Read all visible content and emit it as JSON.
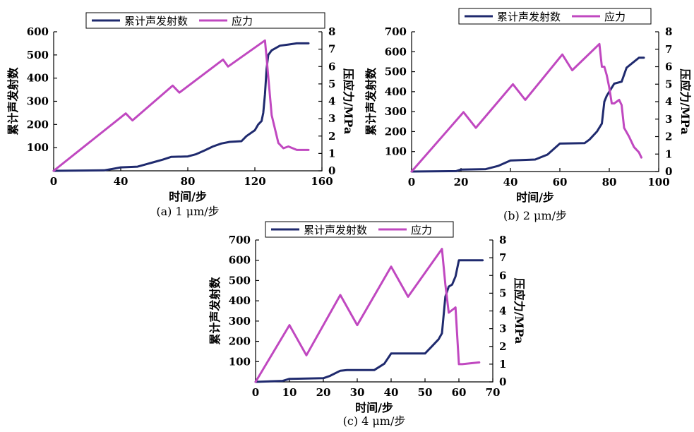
{
  "chart_data": [
    {
      "type": "line",
      "caption": "(a) 1 μm/步",
      "xlabel": "时间/步",
      "ylabel": "累计声发射数",
      "y2label": "压应力/MPa",
      "xlim": [
        0,
        160
      ],
      "xticks": [
        0,
        40,
        80,
        120,
        160
      ],
      "ylim": [
        0,
        600
      ],
      "yticks": [
        100,
        200,
        300,
        400,
        500,
        600
      ],
      "y2lim": [
        0,
        8
      ],
      "y2ticks": [
        0,
        1,
        2,
        3,
        4,
        5,
        6,
        7,
        8
      ],
      "legend_position": "top",
      "series": [
        {
          "name": "累计声发射数",
          "color": "#1f2a6e",
          "axis": "left",
          "x": [
            0,
            30,
            35,
            40,
            50,
            55,
            60,
            65,
            70,
            80,
            85,
            90,
            95,
            100,
            105,
            112,
            115,
            120,
            122,
            124,
            125,
            126,
            127,
            128,
            130,
            135,
            140,
            145,
            152
          ],
          "y": [
            0,
            2,
            8,
            15,
            18,
            28,
            38,
            48,
            60,
            62,
            72,
            88,
            105,
            118,
            125,
            128,
            150,
            175,
            200,
            215,
            250,
            330,
            440,
            500,
            520,
            540,
            545,
            550,
            550
          ]
        },
        {
          "name": "应力",
          "color": "#c048c0",
          "axis": "right",
          "x": [
            0,
            43,
            47,
            71,
            75,
            101,
            104,
            126,
            127,
            130,
            134,
            137,
            140,
            145,
            152
          ],
          "y": [
            0,
            3.3,
            2.9,
            4.9,
            4.5,
            6.4,
            6.0,
            7.5,
            6.5,
            3.2,
            1.6,
            1.3,
            1.4,
            1.2,
            1.2
          ]
        }
      ]
    },
    {
      "type": "line",
      "caption": "(b) 2 μm/步",
      "xlabel": "时间/步",
      "ylabel": "累计声发射数",
      "y2label": "压应力/MPa",
      "xlim": [
        0,
        100
      ],
      "xticks": [
        0,
        20,
        40,
        60,
        80,
        100
      ],
      "ylim": [
        0,
        700
      ],
      "yticks": [
        100,
        200,
        300,
        400,
        500,
        600,
        700
      ],
      "y2lim": [
        0,
        8
      ],
      "y2ticks": [
        0,
        1,
        2,
        3,
        4,
        5,
        6,
        7,
        8
      ],
      "legend_position": "top",
      "series": [
        {
          "name": "累计声发射数",
          "color": "#1f2a6e",
          "axis": "left",
          "x": [
            0,
            18,
            20,
            30,
            35,
            40,
            50,
            55,
            60,
            70,
            72,
            75,
            77,
            78,
            79,
            80,
            82,
            85,
            87,
            90,
            92,
            94
          ],
          "y": [
            0,
            2,
            10,
            12,
            28,
            55,
            60,
            85,
            140,
            142,
            160,
            200,
            240,
            350,
            380,
            400,
            440,
            450,
            520,
            550,
            570,
            570
          ]
        },
        {
          "name": "应力",
          "color": "#c048c0",
          "axis": "right",
          "x": [
            0,
            21,
            26,
            41,
            46,
            61,
            65,
            76,
            77,
            78,
            79,
            80,
            81,
            82,
            84,
            85,
            86,
            88,
            90,
            92,
            93
          ],
          "y": [
            0,
            3.4,
            2.5,
            5.0,
            4.1,
            6.7,
            5.8,
            7.3,
            6.0,
            6.0,
            5.5,
            4.8,
            3.9,
            3.9,
            4.1,
            3.8,
            2.5,
            2.0,
            1.4,
            1.1,
            0.8
          ]
        }
      ]
    },
    {
      "type": "line",
      "caption": "(c) 4 μm/步",
      "xlabel": "时间/步",
      "ylabel": "累计声发射数",
      "y2label": "压应力/MPa",
      "xlim": [
        0,
        70
      ],
      "xticks": [
        0,
        10,
        20,
        30,
        40,
        50,
        60,
        70
      ],
      "ylim": [
        0,
        700
      ],
      "yticks": [
        100,
        200,
        300,
        400,
        500,
        600,
        700
      ],
      "y2lim": [
        0,
        8
      ],
      "y2ticks": [
        0,
        1,
        2,
        3,
        4,
        5,
        6,
        7,
        8
      ],
      "legend_position": "top",
      "series": [
        {
          "name": "累计声发射数",
          "color": "#1f2a6e",
          "axis": "left",
          "x": [
            0,
            8,
            10,
            20,
            22,
            25,
            27,
            35,
            38,
            40,
            50,
            52,
            54,
            55,
            56,
            57,
            58,
            59,
            60,
            65,
            67
          ],
          "y": [
            0,
            5,
            15,
            18,
            30,
            55,
            58,
            58,
            90,
            140,
            140,
            175,
            210,
            240,
            420,
            470,
            480,
            520,
            600,
            600,
            600
          ]
        },
        {
          "name": "应力",
          "color": "#c048c0",
          "axis": "right",
          "x": [
            0,
            10,
            15,
            25,
            30,
            40,
            45,
            55,
            56,
            57,
            59,
            60,
            61,
            66
          ],
          "y": [
            0,
            3.2,
            1.5,
            4.9,
            3.2,
            6.5,
            4.8,
            7.5,
            5.5,
            3.9,
            4.2,
            1.0,
            1.0,
            1.1
          ]
        }
      ]
    }
  ]
}
